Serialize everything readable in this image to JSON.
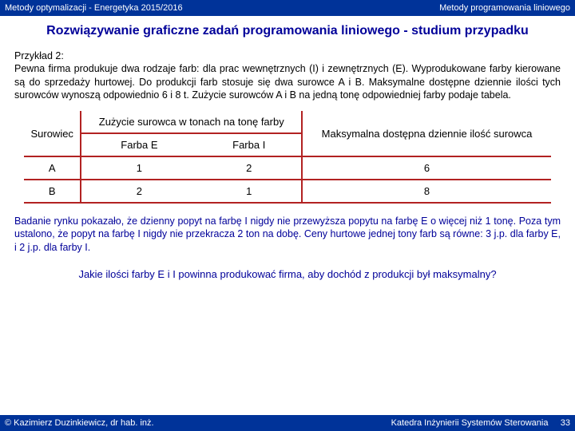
{
  "header": {
    "left": "Metody optymalizacji - Energetyka 2015/2016",
    "right": "Metody programowania liniowego"
  },
  "title": "Rozwiązywanie graficzne zadań programowania liniowego - studium przypadku",
  "intro1": "Przykład 2:",
  "intro2": "Pewna firma produkuje dwa rodzaje farb: dla prac wewnętrznych (I) i zewnętrznych (E). Wyprodukowane farby kierowane są do sprzedaży hurtowej. Do produkcji farb stosuje się dwa surowce A i B. Maksymalne dostępne dziennie ilości tych surowców wynoszą odpowiednio 6 i 8 t. Zużycie surowców A i B na jedną tonę odpowiedniej farby podaje tabela.",
  "table": {
    "h_surowiec": "Surowiec",
    "h_zuzycie": "Zużycie surowca w tonach na tonę farby",
    "h_max": "Maksymalna dostępna dziennie ilość surowca",
    "h_farbaE": "Farba E",
    "h_farbaI": "Farba I",
    "rows": [
      {
        "s": "A",
        "e": "1",
        "i": "2",
        "m": "6"
      },
      {
        "s": "B",
        "e": "2",
        "i": "1",
        "m": "8"
      }
    ]
  },
  "note": "Badanie rynku pokazało, że dzienny popyt na farbę I nigdy nie przewyższa popytu na farbę E o więcej niż 1 tonę. Poza tym ustalono, że popyt na farbę I nigdy nie przekracza 2 ton na dobę. Ceny hurtowe jednej tony farb są równe: 3 j.p. dla farby E, i 2 j.p. dla farby I.",
  "question": "Jakie ilości farby E i I powinna produkować firma, aby dochód z produkcji był maksymalny?",
  "footer": {
    "left": "© Kazimierz Duzinkiewicz, dr hab. inż.",
    "right": "Katedra Inżynierii Systemów Sterowania",
    "page": "33"
  }
}
